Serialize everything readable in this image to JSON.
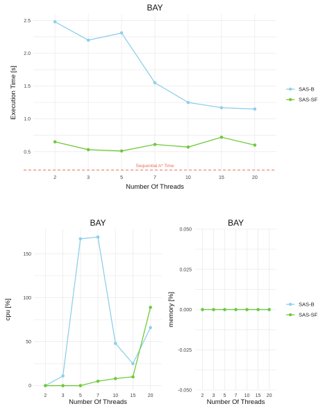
{
  "colors": {
    "sas_b": "#8ecfea",
    "sas_sf": "#6fca3a",
    "reference": "#ef6a55"
  },
  "chart_data": [
    {
      "type": "line",
      "title": "BAY",
      "xlabel": "Number Of Threads",
      "ylabel": "Execution Time [s]",
      "categories": [
        "2",
        "3",
        "5",
        "7",
        "10",
        "15",
        "20"
      ],
      "ylim": [
        0.2,
        2.6
      ],
      "yticks": [
        0.5,
        1.0,
        1.5,
        2.0,
        2.5
      ],
      "ytick_labels": [
        "0.5",
        "1.0",
        "1.5",
        "2.0",
        "2.5"
      ],
      "series": [
        {
          "name": "SAS-B",
          "values": [
            2.48,
            2.2,
            2.31,
            1.55,
            1.25,
            1.17,
            1.15
          ]
        },
        {
          "name": "SAS-SF",
          "values": [
            0.65,
            0.53,
            0.51,
            0.61,
            0.57,
            0.72,
            0.6
          ]
        }
      ],
      "reference_line": {
        "label": "Sequential A* Time",
        "value": 0.22
      },
      "legend": "right",
      "grid": true
    },
    {
      "type": "line",
      "title": "BAY",
      "xlabel": "Number Of Threads",
      "ylabel": "cpu [%]",
      "categories": [
        "2",
        "3",
        "5",
        "7",
        "10",
        "15",
        "20"
      ],
      "ylim": [
        -5,
        178
      ],
      "yticks": [
        0,
        50,
        100,
        150
      ],
      "ytick_labels": [
        "0",
        "50",
        "100",
        "150"
      ],
      "series": [
        {
          "name": "SAS-B",
          "values": [
            0,
            11,
            167,
            169,
            48,
            25,
            66
          ]
        },
        {
          "name": "SAS-SF",
          "values": [
            0,
            0,
            0,
            5,
            8,
            10,
            89
          ]
        }
      ],
      "grid": true
    },
    {
      "type": "line",
      "title": "BAY",
      "xlabel": "Number Of Threads",
      "ylabel": "memory [%]",
      "categories": [
        "2",
        "3",
        "5",
        "7",
        "10",
        "15",
        "20"
      ],
      "ylim": [
        -0.05,
        0.05
      ],
      "yticks": [
        -0.05,
        -0.025,
        0,
        0.025,
        0.05
      ],
      "ytick_labels": [
        "-0.050",
        "-0.025",
        "0.000",
        "0.025",
        "0.050"
      ],
      "series": [
        {
          "name": "SAS-B",
          "values": [
            0,
            0,
            0,
            0,
            0,
            0,
            0
          ]
        },
        {
          "name": "SAS-SF",
          "values": [
            0,
            0,
            0,
            0,
            0,
            0,
            0
          ]
        }
      ],
      "legend": "right",
      "grid": true
    }
  ]
}
